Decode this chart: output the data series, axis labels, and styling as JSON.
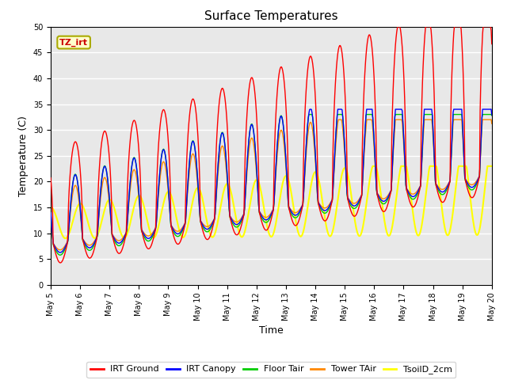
{
  "title": "Surface Temperatures",
  "xlabel": "Time",
  "ylabel": "Temperature (C)",
  "ylim": [
    0,
    50
  ],
  "annotation_text": "TZ_irt",
  "annotation_color": "#cc0000",
  "annotation_bg": "#ffffcc",
  "annotation_border": "#aaaa00",
  "bg_color": "#e8e8e8",
  "series": [
    {
      "label": "IRT Ground",
      "color": "#ff0000"
    },
    {
      "label": "IRT Canopy",
      "color": "#0000ff"
    },
    {
      "label": "Floor Tair",
      "color": "#00cc00"
    },
    {
      "label": "Tower TAir",
      "color": "#ff8800"
    },
    {
      "label": "TsoilD_2cm",
      "color": "#ffff00"
    }
  ],
  "x_tick_labels": [
    "May 5",
    "May 6",
    "May 7",
    "May 8",
    "May 9",
    "May 10",
    "May 11",
    "May 12",
    "May 13",
    "May 14",
    "May 15",
    "May 16",
    "May 17",
    "May 18",
    "May 19",
    "May 20"
  ],
  "x_tick_positions": [
    0,
    1,
    2,
    3,
    4,
    5,
    6,
    7,
    8,
    9,
    10,
    11,
    12,
    13,
    14,
    15
  ]
}
